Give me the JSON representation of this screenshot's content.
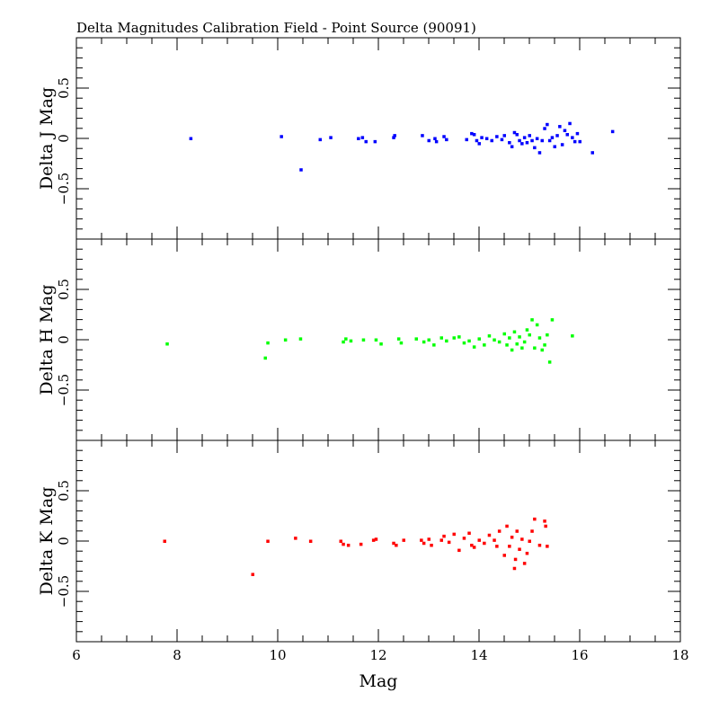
{
  "chart_data": {
    "type": "scatter",
    "title": "Delta Magnitudes Calibration Field - Point Source (90091)",
    "xlabel": "Mag",
    "xlim": [
      6,
      18
    ],
    "x_ticks": [
      "6",
      "8",
      "10",
      "12",
      "14",
      "16",
      "18"
    ],
    "grid": false,
    "panels": [
      {
        "ylabel": "Delta J Mag",
        "ylim": [
          -1,
          1
        ],
        "color": "#0000ff",
        "y_ticks": [
          "-0.5",
          "0",
          "0.5"
        ],
        "points": [
          [
            8.27,
            0
          ],
          [
            10.07,
            0.02
          ],
          [
            10.46,
            -0.31
          ],
          [
            10.84,
            -0.01
          ],
          [
            11.05,
            0.01
          ],
          [
            11.6,
            0
          ],
          [
            11.68,
            0.01
          ],
          [
            11.75,
            -0.03
          ],
          [
            11.93,
            -0.03
          ],
          [
            12.3,
            0.01
          ],
          [
            12.32,
            0.03
          ],
          [
            12.87,
            0.03
          ],
          [
            13.0,
            -0.02
          ],
          [
            13.12,
            0
          ],
          [
            13.15,
            -0.03
          ],
          [
            13.3,
            0.02
          ],
          [
            13.35,
            -0.01
          ],
          [
            13.75,
            -0.01
          ],
          [
            13.85,
            0.05
          ],
          [
            13.9,
            0.04
          ],
          [
            13.95,
            -0.02
          ],
          [
            14.0,
            -0.05
          ],
          [
            14.05,
            0.01
          ],
          [
            14.15,
            0
          ],
          [
            14.25,
            -0.02
          ],
          [
            14.35,
            0.02
          ],
          [
            14.45,
            -0.01
          ],
          [
            14.5,
            0.03
          ],
          [
            14.6,
            -0.04
          ],
          [
            14.65,
            -0.08
          ],
          [
            14.7,
            0.06
          ],
          [
            14.75,
            0.04
          ],
          [
            14.8,
            -0.02
          ],
          [
            14.85,
            -0.05
          ],
          [
            14.9,
            0.01
          ],
          [
            14.95,
            -0.04
          ],
          [
            15.0,
            0.03
          ],
          [
            15.05,
            -0.02
          ],
          [
            15.1,
            -0.09
          ],
          [
            15.15,
            0
          ],
          [
            15.2,
            -0.14
          ],
          [
            15.25,
            -0.02
          ],
          [
            15.3,
            0.1
          ],
          [
            15.35,
            0.14
          ],
          [
            15.4,
            -0.02
          ],
          [
            15.45,
            0.01
          ],
          [
            15.5,
            -0.08
          ],
          [
            15.55,
            0.03
          ],
          [
            15.6,
            0.12
          ],
          [
            15.65,
            -0.06
          ],
          [
            15.7,
            0.08
          ],
          [
            15.75,
            0.04
          ],
          [
            15.8,
            0.15
          ],
          [
            15.85,
            0.01
          ],
          [
            15.9,
            -0.03
          ],
          [
            15.95,
            0.05
          ],
          [
            16.0,
            -0.03
          ],
          [
            16.25,
            -0.14
          ],
          [
            16.65,
            0.07
          ]
        ]
      },
      {
        "ylabel": "Delta H Mag",
        "ylim": [
          -1,
          1
        ],
        "color": "#00ff00",
        "y_ticks": [
          "-0.5",
          "0",
          "0.5"
        ],
        "points": [
          [
            7.8,
            -0.04
          ],
          [
            9.75,
            -0.18
          ],
          [
            9.8,
            -0.03
          ],
          [
            10.15,
            0
          ],
          [
            10.45,
            0.01
          ],
          [
            11.3,
            -0.02
          ],
          [
            11.35,
            0.01
          ],
          [
            11.45,
            -0.01
          ],
          [
            11.7,
            0
          ],
          [
            11.95,
            0
          ],
          [
            12.05,
            -0.04
          ],
          [
            12.4,
            0.01
          ],
          [
            12.45,
            -0.03
          ],
          [
            12.75,
            0.01
          ],
          [
            12.9,
            -0.02
          ],
          [
            13.0,
            0
          ],
          [
            13.1,
            -0.05
          ],
          [
            13.25,
            0.02
          ],
          [
            13.35,
            -0.01
          ],
          [
            13.5,
            0.02
          ],
          [
            13.6,
            0.03
          ],
          [
            13.7,
            -0.03
          ],
          [
            13.8,
            -0.01
          ],
          [
            13.9,
            -0.07
          ],
          [
            14.0,
            0.01
          ],
          [
            14.1,
            -0.05
          ],
          [
            14.2,
            0.04
          ],
          [
            14.3,
            0
          ],
          [
            14.4,
            -0.02
          ],
          [
            14.5,
            0.06
          ],
          [
            14.55,
            -0.05
          ],
          [
            14.6,
            0.02
          ],
          [
            14.65,
            -0.1
          ],
          [
            14.7,
            0.08
          ],
          [
            14.75,
            -0.04
          ],
          [
            14.8,
            0.03
          ],
          [
            14.85,
            -0.08
          ],
          [
            14.9,
            -0.02
          ],
          [
            14.95,
            0.1
          ],
          [
            15.0,
            0.05
          ],
          [
            15.05,
            0.2
          ],
          [
            15.1,
            -0.08
          ],
          [
            15.15,
            0.15
          ],
          [
            15.2,
            0.02
          ],
          [
            15.25,
            -0.1
          ],
          [
            15.3,
            -0.05
          ],
          [
            15.35,
            0.05
          ],
          [
            15.4,
            -0.22
          ],
          [
            15.45,
            0.2
          ],
          [
            15.85,
            0.04
          ]
        ]
      },
      {
        "ylabel": "Delta K Mag",
        "ylim": [
          -1,
          1
        ],
        "color": "#ff0000",
        "y_ticks": [
          "-0.5",
          "0",
          "0.5"
        ],
        "points": [
          [
            7.75,
            0
          ],
          [
            9.5,
            -0.33
          ],
          [
            9.8,
            0
          ],
          [
            10.35,
            0.03
          ],
          [
            10.65,
            0
          ],
          [
            11.25,
            0
          ],
          [
            11.3,
            -0.03
          ],
          [
            11.4,
            -0.04
          ],
          [
            11.65,
            -0.03
          ],
          [
            11.9,
            0.01
          ],
          [
            11.95,
            0.02
          ],
          [
            12.3,
            -0.02
          ],
          [
            12.35,
            -0.04
          ],
          [
            12.5,
            0.01
          ],
          [
            12.85,
            0.01
          ],
          [
            12.9,
            -0.02
          ],
          [
            13.0,
            0.02
          ],
          [
            13.05,
            -0.04
          ],
          [
            13.25,
            0.01
          ],
          [
            13.3,
            0.05
          ],
          [
            13.4,
            -0.01
          ],
          [
            13.5,
            0.07
          ],
          [
            13.6,
            -0.09
          ],
          [
            13.7,
            0.03
          ],
          [
            13.8,
            0.08
          ],
          [
            13.85,
            -0.04
          ],
          [
            13.9,
            -0.06
          ],
          [
            14.0,
            0.01
          ],
          [
            14.1,
            -0.02
          ],
          [
            14.2,
            0.06
          ],
          [
            14.3,
            0.01
          ],
          [
            14.35,
            -0.05
          ],
          [
            14.4,
            0.1
          ],
          [
            14.5,
            -0.14
          ],
          [
            14.55,
            0.15
          ],
          [
            14.6,
            -0.05
          ],
          [
            14.65,
            0.04
          ],
          [
            14.7,
            -0.27
          ],
          [
            14.72,
            -0.18
          ],
          [
            14.75,
            0.1
          ],
          [
            14.8,
            -0.08
          ],
          [
            14.85,
            0.02
          ],
          [
            14.9,
            -0.22
          ],
          [
            14.95,
            -0.12
          ],
          [
            15.0,
            0
          ],
          [
            15.05,
            0.1
          ],
          [
            15.1,
            0.22
          ],
          [
            15.2,
            -0.04
          ],
          [
            15.3,
            0.2
          ],
          [
            15.32,
            0.15
          ],
          [
            15.35,
            -0.05
          ]
        ]
      }
    ]
  }
}
